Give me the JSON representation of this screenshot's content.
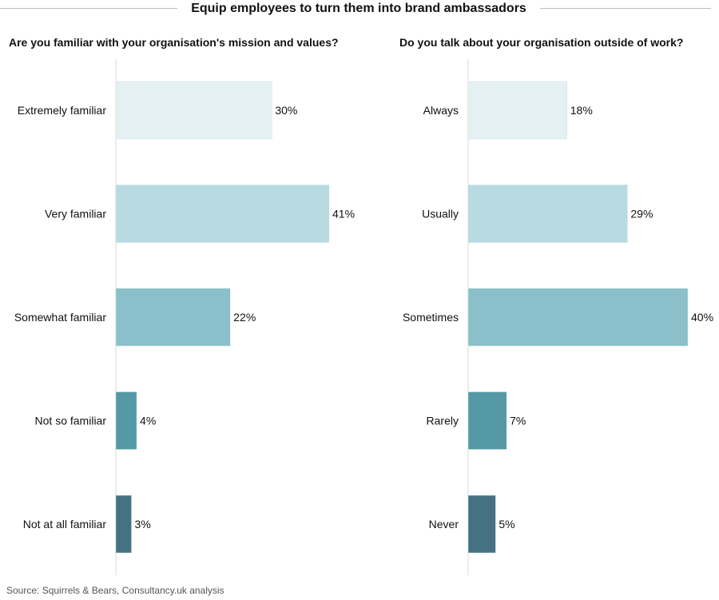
{
  "title": "Equip employees to turn them into brand ambassadors",
  "source": "Source: Squirrels & Bears, Consultancy.uk analysis",
  "chart_data": [
    {
      "type": "bar",
      "orientation": "horizontal",
      "title": "Are you familiar with your organisation's mission and values?",
      "categories": [
        "Extremely familiar",
        "Very familiar",
        "Somewhat familiar",
        "Not so familiar",
        "Not at all familiar"
      ],
      "values": [
        30,
        41,
        22,
        4,
        3
      ],
      "value_labels": [
        "30%",
        "41%",
        "22%",
        "4%",
        "3%"
      ],
      "unit": "%",
      "xlim": [
        0,
        41
      ],
      "colors": [
        "#e5f0f2",
        "#b8dae1",
        "#8bbfc9",
        "#5598a6",
        "#457282"
      ],
      "grid": false,
      "legend": "none"
    },
    {
      "type": "bar",
      "orientation": "horizontal",
      "title": "Do you talk about your organisation outside of work?",
      "categories": [
        "Always",
        "Usually",
        "Sometimes",
        "Rarely",
        "Never"
      ],
      "values": [
        18,
        29,
        40,
        7,
        5
      ],
      "value_labels": [
        "18%",
        "29%",
        "40%",
        "7%",
        "5%"
      ],
      "unit": "%",
      "xlim": [
        0,
        40
      ],
      "colors": [
        "#e5f0f2",
        "#b8dae1",
        "#8bbfc9",
        "#5598a6",
        "#457282"
      ],
      "grid": false,
      "legend": "none"
    }
  ]
}
